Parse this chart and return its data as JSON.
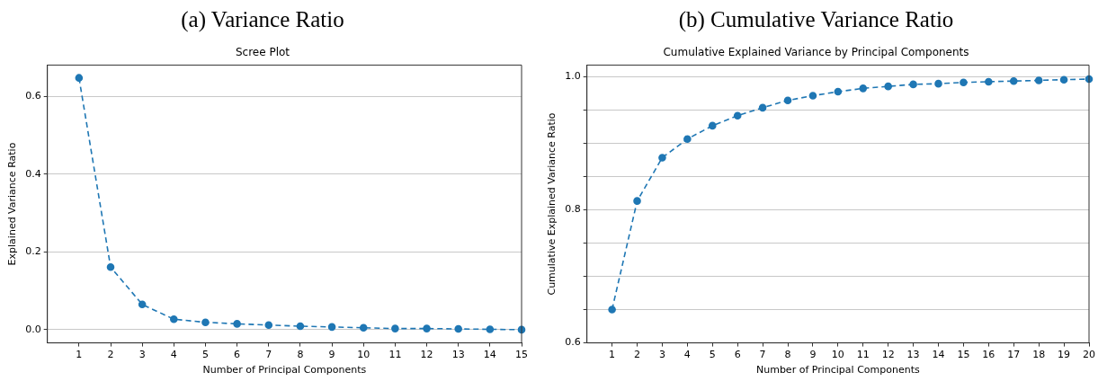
{
  "chart_data": [
    {
      "type": "line",
      "title": "(a) Variance Ratio",
      "subtitle": "Scree Plot",
      "xlabel": "Number of Principal Components",
      "ylabel": "Explained Variance Ratio",
      "x": [
        1,
        2,
        3,
        4,
        5,
        6,
        7,
        8,
        9,
        10,
        11,
        12,
        13,
        14,
        15
      ],
      "series": [
        {
          "color": "#1f77b4",
          "values": [
            0.648,
            0.161,
            0.065,
            0.027,
            0.019,
            0.015,
            0.012,
            0.009,
            0.007,
            0.005,
            0.003,
            0.003,
            0.002,
            0.001,
            0.0
          ]
        }
      ],
      "xlim": [
        0,
        15
      ],
      "xticks": [
        1,
        2,
        3,
        4,
        5,
        6,
        7,
        8,
        9,
        10,
        11,
        12,
        13,
        14,
        15
      ],
      "ylim": [
        -0.034,
        0.681
      ],
      "yticks": [
        {
          "value": 0,
          "label": "0.0"
        },
        0.2,
        0.4,
        0.6
      ],
      "grid": "y",
      "legend": false,
      "marker": "circle",
      "line_style": "dashed"
    },
    {
      "type": "line",
      "title": "(b) Cumulative Variance Ratio",
      "subtitle": "Cumulative Explained Variance by Principal Components",
      "xlabel": "Number of Principal Components",
      "ylabel": "Cumulative Explained Variance Ratio",
      "x": [
        1,
        2,
        3,
        4,
        5,
        6,
        7,
        8,
        9,
        10,
        11,
        12,
        13,
        14,
        15,
        16,
        17,
        18,
        19,
        20
      ],
      "series": [
        {
          "color": "#1f77b4",
          "values": [
            0.65,
            0.813,
            0.878,
            0.906,
            0.926,
            0.941,
            0.953,
            0.964,
            0.971,
            0.977,
            0.982,
            0.985,
            0.988,
            0.989,
            0.991,
            0.992,
            0.993,
            0.994,
            0.995,
            0.996
          ]
        }
      ],
      "xlim": [
        0,
        20
      ],
      "xticks": [
        1,
        2,
        3,
        4,
        5,
        6,
        7,
        8,
        9,
        10,
        11,
        12,
        13,
        14,
        15,
        16,
        17,
        18,
        19,
        20
      ],
      "ylim": [
        0.6,
        1.017
      ],
      "yticks": [
        0.6,
        {
          "value": 0.65,
          "label": null
        },
        {
          "value": 0.7,
          "label": null
        },
        {
          "value": 0.75,
          "label": null
        },
        0.8,
        {
          "value": 0.85,
          "label": null
        },
        {
          "value": 0.9,
          "label": null
        },
        {
          "value": 0.95,
          "label": null
        },
        {
          "value": 1,
          "label": "1.0"
        }
      ],
      "grid": "y",
      "legend": false,
      "marker": "circle",
      "line_style": "dashed"
    }
  ]
}
